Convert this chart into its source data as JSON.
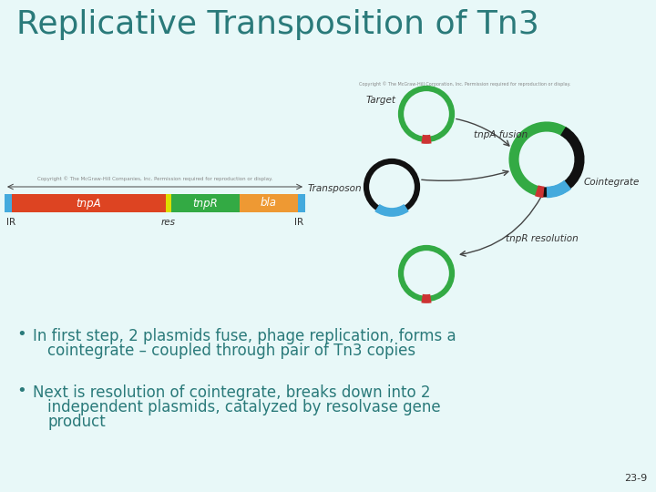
{
  "title": "Replicative Transposition of Tn3",
  "title_color": "#2a7a7a",
  "title_fontsize": 26,
  "bg_color": "#e8f8f8",
  "bullet1_line1": "In first step, 2 plasmids fuse, phage replication, forms a",
  "bullet1_line2": "cointegrate – coupled through pair of Tn3 copies",
  "bullet2_line1": "Next is resolution of cointegrate, breaks down into 2",
  "bullet2_line2": "independent plasmids, catalyzed by resolvase gene",
  "bullet2_line3": "product",
  "page_num": "23-9",
  "text_color": "#2a7a7a",
  "bullet_fontsize": 12,
  "green_color": "#33aa44",
  "black_color": "#111111",
  "blue_color": "#44aadd",
  "red_color": "#cc3333",
  "orange_color": "#ee9933",
  "yellow_color": "#eeee22",
  "bar_red": "#dd4422",
  "bar_green": "#33aa44",
  "bar_orange": "#ee9933",
  "bar_blue": "#44aadd",
  "bar_yellow": "#dddd00",
  "copyright_color": "#888888",
  "arrow_color": "#444444",
  "label_color": "#333333"
}
